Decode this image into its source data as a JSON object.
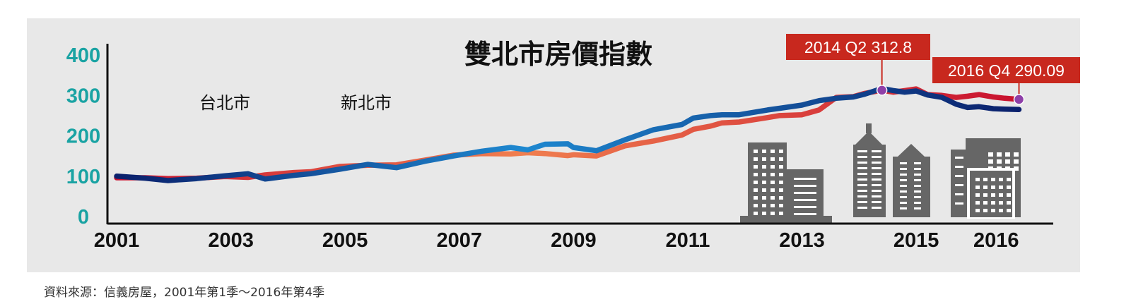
{
  "chart_data": {
    "type": "line",
    "title": "雙北市房價指數",
    "colors": {
      "taipei_start": "#0a1f6b",
      "taipei_end": "#1e88d0",
      "newtaipei_start": "#c8102e",
      "newtaipei_end": "#f07f4f",
      "y_tick_color": "#1aa3a3",
      "annotation_bg": "#c8281e",
      "marker": "#8e3fa8",
      "building": "#666666"
    },
    "ylim": [
      0,
      400
    ],
    "yticks": [
      "0",
      "100",
      "200",
      "300",
      "400"
    ],
    "xlim": [
      2001,
      2017.4
    ],
    "xticks": [
      {
        "label": "2001",
        "x": 2001
      },
      {
        "label": "2003",
        "x": 2003
      },
      {
        "label": "2005",
        "x": 2005
      },
      {
        "label": "2007",
        "x": 2007
      },
      {
        "label": "2009",
        "x": 2009
      },
      {
        "label": "2011",
        "x": 2011
      },
      {
        "label": "2013",
        "x": 2013
      },
      {
        "label": "2015",
        "x": 2015
      },
      {
        "label": "2016",
        "x": 2016.4
      }
    ],
    "series": [
      {
        "name": "台北市",
        "points": [
          [
            2001,
            100
          ],
          [
            2001.5,
            95
          ],
          [
            2001.9,
            89
          ],
          [
            2002.4,
            94
          ],
          [
            2002.9,
            101
          ],
          [
            2003.3,
            106
          ],
          [
            2003.6,
            93
          ],
          [
            2004.1,
            102
          ],
          [
            2004.4,
            106
          ],
          [
            2004.9,
            117
          ],
          [
            2005.4,
            129
          ],
          [
            2005.9,
            121
          ],
          [
            2006.4,
            137
          ],
          [
            2006.9,
            150
          ],
          [
            2007.4,
            162
          ],
          [
            2007.9,
            171
          ],
          [
            2008.2,
            165
          ],
          [
            2008.5,
            179
          ],
          [
            2008.9,
            180
          ],
          [
            2009.0,
            171
          ],
          [
            2009.4,
            163
          ],
          [
            2009.9,
            190
          ],
          [
            2010.4,
            215
          ],
          [
            2010.9,
            228
          ],
          [
            2011.1,
            244
          ],
          [
            2011.4,
            250
          ],
          [
            2011.6,
            252
          ],
          [
            2011.9,
            252
          ],
          [
            2012.4,
            264
          ],
          [
            2012.6,
            268
          ],
          [
            2013.0,
            276
          ],
          [
            2013.3,
            287
          ],
          [
            2013.6,
            293
          ],
          [
            2013.9,
            296
          ],
          [
            2014.1,
            303
          ],
          [
            2014.4,
            317
          ],
          [
            2014.6,
            312
          ],
          [
            2014.8,
            308
          ],
          [
            2015.0,
            311
          ],
          [
            2015.2,
            301
          ],
          [
            2015.45,
            295
          ],
          [
            2015.7,
            278
          ],
          [
            2015.9,
            270
          ],
          [
            2016.1,
            272
          ],
          [
            2016.35,
            267
          ],
          [
            2016.55,
            266
          ],
          [
            2016.8,
            265
          ]
        ]
      },
      {
        "name": "新北市",
        "points": [
          [
            2001,
            96
          ],
          [
            2001.5,
            96
          ],
          [
            2001.9,
            94
          ],
          [
            2002.4,
            95
          ],
          [
            2002.9,
            99
          ],
          [
            2003.3,
            97
          ],
          [
            2003.6,
            103
          ],
          [
            2004.1,
            109
          ],
          [
            2004.4,
            111
          ],
          [
            2004.9,
            124
          ],
          [
            2005.4,
            127
          ],
          [
            2005.9,
            128
          ],
          [
            2006.4,
            140
          ],
          [
            2006.9,
            152
          ],
          [
            2007.4,
            156
          ],
          [
            2007.9,
            155
          ],
          [
            2008.2,
            158
          ],
          [
            2008.5,
            156
          ],
          [
            2008.9,
            151
          ],
          [
            2009.0,
            153
          ],
          [
            2009.4,
            150
          ],
          [
            2009.9,
            175
          ],
          [
            2010.4,
            187
          ],
          [
            2010.9,
            202
          ],
          [
            2011.1,
            216
          ],
          [
            2011.4,
            224
          ],
          [
            2011.6,
            232
          ],
          [
            2011.9,
            234
          ],
          [
            2012.4,
            245
          ],
          [
            2012.6,
            250
          ],
          [
            2013.0,
            252
          ],
          [
            2013.3,
            264
          ],
          [
            2013.6,
            295
          ],
          [
            2013.9,
            297
          ],
          [
            2014.1,
            305
          ],
          [
            2014.4,
            312.8
          ],
          [
            2014.6,
            308
          ],
          [
            2014.8,
            312
          ],
          [
            2015.0,
            316
          ],
          [
            2015.2,
            302
          ],
          [
            2015.45,
            300
          ],
          [
            2015.7,
            295
          ],
          [
            2015.9,
            298
          ],
          [
            2016.1,
            302
          ],
          [
            2016.35,
            296
          ],
          [
            2016.55,
            293
          ],
          [
            2016.8,
            290.09
          ]
        ]
      }
    ],
    "legend": {
      "placement": "top-left"
    },
    "annotations": [
      {
        "text": "2014 Q2 312.8",
        "x": 2014.4,
        "y": 312.8
      },
      {
        "text": "2016 Q4 290.09",
        "x": 2016.8,
        "y": 290.09
      }
    ],
    "source": "資料來源：信義房屋，2001年第1季～2016年第4季"
  }
}
